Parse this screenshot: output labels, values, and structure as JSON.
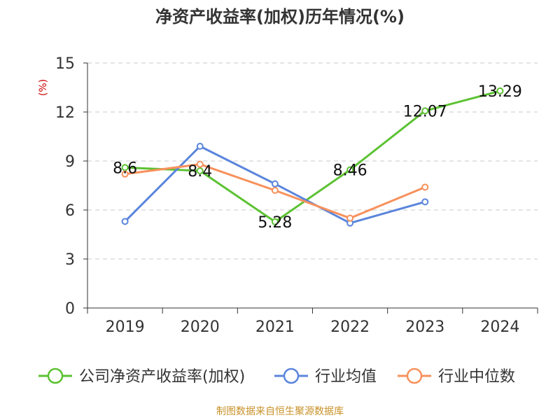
{
  "chart_data": {
    "type": "line",
    "title": "净资产收益率(加权)历年情况(%)",
    "ylabel": "(%)",
    "xlabel": "",
    "categories": [
      "2019",
      "2020",
      "2021",
      "2022",
      "2023",
      "2024"
    ],
    "ylim": [
      0,
      15
    ],
    "yticks": [
      0,
      3,
      6,
      9,
      12,
      15
    ],
    "grid": true,
    "legend_position": "bottom",
    "series": [
      {
        "name": "公司净资产收益率(加权)",
        "color": "#5cc232",
        "values": [
          8.6,
          8.4,
          5.28,
          8.46,
          12.07,
          13.29
        ],
        "labels": [
          "8.6",
          "8.4",
          "5.28",
          "8.46",
          "12.07",
          "13.29"
        ],
        "show_labels": true
      },
      {
        "name": "行业均值",
        "color": "#5b85dc",
        "values": [
          5.3,
          9.9,
          7.6,
          5.2,
          6.5,
          null
        ],
        "show_labels": false
      },
      {
        "name": "行业中位数",
        "color": "#f7915c",
        "values": [
          8.2,
          8.8,
          7.2,
          5.5,
          7.4,
          null
        ],
        "show_labels": false
      }
    ],
    "source": "制图数据来自恒生聚源数据库"
  }
}
